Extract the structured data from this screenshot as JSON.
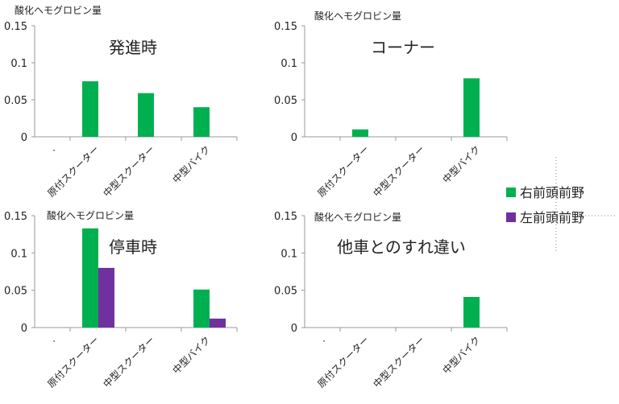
{
  "chart_data": [
    {
      "type": "bar",
      "title": "発進時",
      "ylabel": "酸化ヘモグロビン量",
      "categories": [
        ".",
        "原付スクーター",
        "中型スクーター",
        "中型バイク"
      ],
      "series": [
        {
          "name": "右前頭前野",
          "values": [
            0,
            0.075,
            0.059,
            0.04
          ]
        }
      ],
      "yticks": [
        "0",
        "0.05",
        "0.1",
        "0.15"
      ],
      "ylim": [
        0,
        0.15
      ]
    },
    {
      "type": "bar",
      "title": "コーナー",
      "ylabel": "酸化ヘモグロビン量",
      "categories": [
        "",
        "原付スクーター",
        "中型スクーター",
        "中型バイク"
      ],
      "series": [
        {
          "name": "右前頭前野",
          "values": [
            0,
            0.01,
            0,
            0.079
          ]
        }
      ],
      "yticks": [
        "0",
        "0.05",
        "0.1",
        "0.15"
      ],
      "ylim": [
        0,
        0.15
      ]
    },
    {
      "type": "bar",
      "title": "停車時",
      "ylabel": "酸化ヘモグロビン量",
      "categories": [
        ".",
        "原付スクーター",
        "中型スクーター",
        "中型バイク"
      ],
      "series": [
        {
          "name": "右前頭前野",
          "values": [
            0,
            0.133,
            0,
            0.051
          ]
        },
        {
          "name": "左前頭前野",
          "values": [
            0,
            0.08,
            0,
            0.012
          ]
        }
      ],
      "yticks": [
        "0",
        "0.05",
        "0.1",
        "0.15"
      ],
      "ylim": [
        0,
        0.15
      ]
    },
    {
      "type": "bar",
      "title": "他車とのすれ違い",
      "ylabel": "酸化ヘモグロビン量",
      "categories": [
        ".",
        "原付スクーター",
        "中型スクーター",
        "中型バイク"
      ],
      "series": [
        {
          "name": "右前頭前野",
          "values": [
            0,
            0,
            0,
            0.041
          ]
        }
      ],
      "yticks": [
        "0",
        "0.05",
        "0.1",
        "0.15"
      ],
      "ylim": [
        0,
        0.15
      ]
    }
  ],
  "legend": {
    "placement": "right",
    "items": [
      {
        "label": "右前頭前野",
        "color": "#00b050"
      },
      {
        "label": "左前頭前野",
        "color": "#7030a0"
      }
    ]
  }
}
